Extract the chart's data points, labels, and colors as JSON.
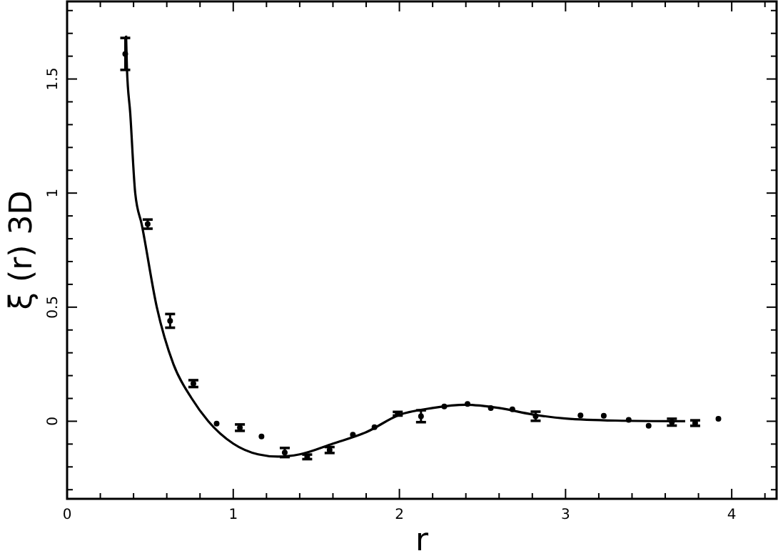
{
  "chart_data": {
    "type": "scatter",
    "xlabel": "r",
    "ylabel": "ξ (r)   3D",
    "xlim": [
      0,
      4.27
    ],
    "ylim": [
      -0.34,
      1.84
    ],
    "xticks": [
      0,
      {
        "value": 0.2,
        "label": null
      },
      {
        "value": 0.4,
        "label": null
      },
      {
        "value": 0.6,
        "label": null
      },
      {
        "value": 0.8,
        "label": null
      },
      1,
      {
        "value": 1.2,
        "label": null
      },
      {
        "value": 1.4,
        "label": null
      },
      {
        "value": 1.6,
        "label": null
      },
      {
        "value": 1.8,
        "label": null
      },
      2,
      {
        "value": 2.2,
        "label": null
      },
      {
        "value": 2.4,
        "label": null
      },
      {
        "value": 2.6,
        "label": null
      },
      {
        "value": 2.8,
        "label": null
      },
      3,
      {
        "value": 3.2,
        "label": null
      },
      {
        "value": 3.4,
        "label": null
      },
      {
        "value": 3.6,
        "label": null
      },
      {
        "value": 3.8,
        "label": null
      },
      4,
      {
        "value": 4.2,
        "label": null
      }
    ],
    "yticks": [
      {
        "value": -0.3,
        "label": null
      },
      {
        "value": -0.2,
        "label": null
      },
      {
        "value": -0.1,
        "label": null
      },
      0,
      {
        "value": 0.1,
        "label": null
      },
      {
        "value": 0.2,
        "label": null
      },
      {
        "value": 0.3,
        "label": null
      },
      {
        "value": 0.4,
        "label": null
      },
      0.5,
      {
        "value": 0.6,
        "label": null
      },
      {
        "value": 0.7,
        "label": null
      },
      {
        "value": 0.8,
        "label": null
      },
      {
        "value": 0.9,
        "label": null
      },
      1,
      {
        "value": 1.1,
        "label": null
      },
      {
        "value": 1.2,
        "label": null
      },
      {
        "value": 1.3,
        "label": null
      },
      {
        "value": 1.4,
        "label": null
      },
      1.5,
      {
        "value": 1.6,
        "label": null
      },
      {
        "value": 1.7,
        "label": null
      },
      {
        "value": 1.8,
        "label": null
      }
    ],
    "grid": false,
    "series": [
      {
        "color": "#000000",
        "x": [
          0.35,
          0.485,
          0.62,
          0.76,
          0.9,
          1.04,
          1.17,
          1.31,
          1.445,
          1.58,
          1.72,
          1.85,
          1.99,
          2.13,
          2.27,
          2.41,
          2.55,
          2.68,
          2.82,
          3.09,
          3.23,
          3.38,
          3.5,
          3.64,
          3.78,
          3.92
        ],
        "values": [
          1.61,
          0.864,
          0.44,
          0.165,
          -0.01,
          -0.028,
          -0.067,
          -0.137,
          -0.156,
          -0.126,
          -0.059,
          -0.026,
          0.033,
          0.022,
          0.065,
          0.076,
          0.058,
          0.052,
          0.022,
          0.026,
          0.024,
          0.006,
          -0.02,
          -0.004,
          -0.008,
          0.011
        ],
        "errors": [
          0.07,
          0.02,
          0.03,
          0.015,
          null,
          0.014,
          null,
          0.02,
          0.01,
          0.013,
          null,
          null,
          0.008,
          0.026,
          null,
          null,
          null,
          null,
          0.02,
          null,
          null,
          null,
          null,
          0.015,
          0.012,
          null
        ]
      },
      {
        "type": "line",
        "color": "#000000",
        "line_style": "solid",
        "x": [
          0.355,
          0.36,
          0.38,
          0.41,
          0.45,
          0.54,
          0.64,
          0.75,
          0.85,
          1.0,
          1.15,
          1.27,
          1.4,
          1.6,
          1.8,
          2.0,
          2.2,
          2.4,
          2.6,
          2.8,
          3.0,
          3.3,
          3.72
        ],
        "values": [
          1.69,
          1.55,
          1.35,
          1.0,
          0.86,
          0.5,
          0.25,
          0.1,
          0.0,
          -0.098,
          -0.145,
          -0.155,
          -0.145,
          -0.098,
          -0.048,
          0.028,
          0.058,
          0.072,
          0.058,
          0.03,
          0.012,
          0.003,
          0.0
        ]
      }
    ]
  }
}
